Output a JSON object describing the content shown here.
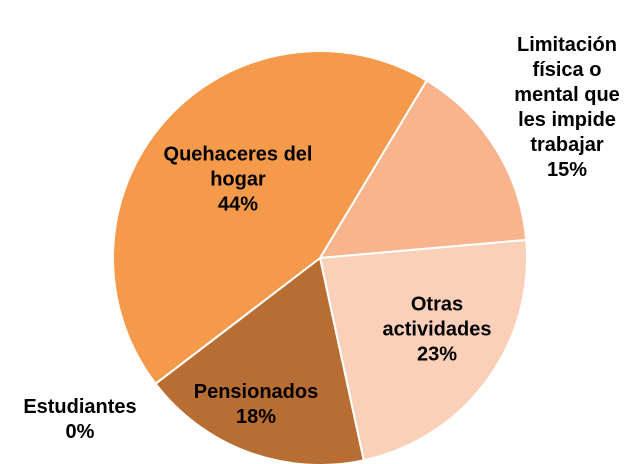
{
  "chart_data": {
    "type": "pie",
    "categories": [
      "Limitación física o mental que les impide trabajar",
      "Otras actividades",
      "Pensionados",
      "Estudiantes",
      "Quehaceres del hogar"
    ],
    "values": [
      15,
      23,
      18,
      0,
      44
    ],
    "value_labels": [
      "15%",
      "23%",
      "18%",
      "0%",
      "44%"
    ],
    "colors": [
      "#f8b48c",
      "#fbd0b8",
      "#b86e32",
      "#c55a11",
      "#f59a4a"
    ]
  }
}
